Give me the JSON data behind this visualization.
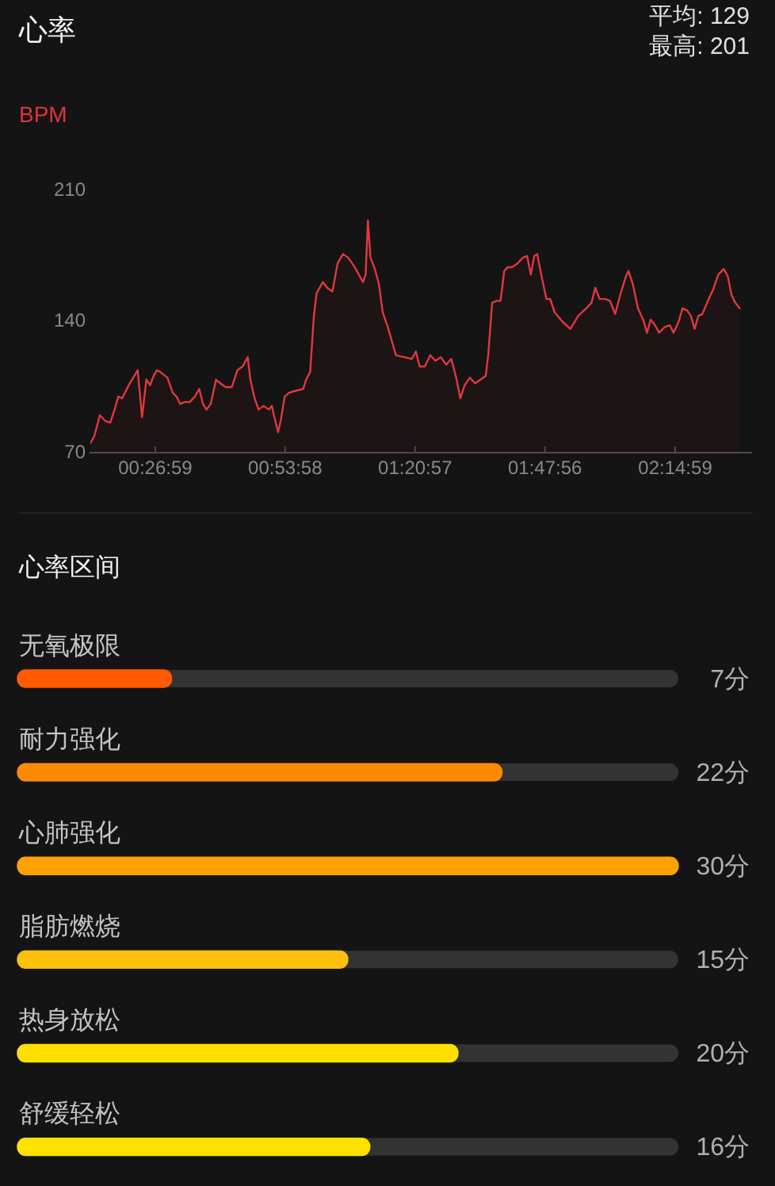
{
  "chart_data": [
    {
      "type": "area",
      "title": "心率",
      "ylabel": "BPM",
      "annotations": [
        "平均: 129",
        "最高: 201"
      ],
      "x": [
        0.225,
        0.239,
        0.258,
        0.276,
        0.294,
        0.309,
        0.322,
        0.335,
        0.358,
        0.377,
        0.389,
        0.404,
        0.419,
        0.432,
        0.444,
        0.455,
        0.468,
        0.492,
        0.51,
        0.523,
        0.536,
        0.551,
        0.569,
        0.587,
        0.602,
        0.615,
        0.627,
        0.642,
        0.66,
        0.675,
        0.693,
        0.715,
        0.734,
        0.752,
        0.77,
        0.779,
        0.792,
        0.807,
        0.825,
        0.843,
        0.853,
        0.862,
        0.875,
        0.884,
        0.898,
        0.913,
        0.935,
        0.962,
        0.972,
        0.986,
        0.999,
        1.008,
        1.03,
        1.045,
        1.063,
        1.081,
        1.1,
        1.118,
        1.14,
        1.169,
        1.178,
        1.186,
        1.195,
        1.21,
        1.224,
        1.237,
        1.255,
        1.283,
        1.31,
        1.338,
        1.352,
        1.365,
        1.383,
        1.402,
        1.42,
        1.438,
        1.457,
        1.475,
        1.493,
        1.506,
        1.521,
        1.539,
        1.557,
        1.576,
        1.594,
        1.603,
        1.616,
        1.631,
        1.645,
        1.658,
        1.671,
        1.685,
        1.704,
        1.722,
        1.737,
        1.75,
        1.762,
        1.772,
        1.786,
        1.804,
        1.817,
        1.832,
        1.859,
        1.887,
        1.914,
        1.942,
        1.96,
        1.973,
        1.988,
        2.006,
        2.024,
        2.042,
        2.061,
        2.079,
        2.088,
        2.103,
        2.121,
        2.139,
        2.152,
        2.165,
        2.18,
        2.194,
        2.213,
        2.231,
        2.244,
        2.262,
        2.275,
        2.29,
        2.304,
        2.317,
        2.33,
        2.344,
        2.363,
        2.381,
        2.399,
        2.418,
        2.432,
        2.445,
        2.458,
        2.473
      ],
      "series": [
        {
          "color": "#e0383e",
          "values": [
            75,
            79,
            90,
            87,
            86,
            93,
            100,
            99,
            106,
            111,
            114,
            89,
            109,
            106,
            111,
            114,
            113,
            110,
            102,
            100,
            96,
            97,
            97,
            100,
            104,
            96,
            93,
            96,
            109,
            107,
            105,
            105,
            114,
            116,
            121,
            109,
            100,
            93,
            95,
            93,
            95,
            89,
            81,
            87,
            100,
            102,
            103,
            104,
            109,
            113,
            143,
            155,
            161,
            158,
            156,
            171,
            176,
            174,
            169,
            161,
            165,
            194,
            174,
            168,
            160,
            145,
            137,
            122,
            121,
            120,
            124,
            116,
            116,
            122,
            119,
            121,
            117,
            120,
            109,
            99,
            106,
            110,
            107,
            109,
            111,
            123,
            150,
            151,
            151,
            167,
            169,
            169,
            171,
            174,
            175,
            165,
            175,
            176,
            165,
            152,
            152,
            145,
            140,
            136,
            143,
            147,
            150,
            158,
            152,
            152,
            151,
            144,
            155,
            164,
            167,
            160,
            147,
            141,
            134,
            141,
            138,
            134,
            137,
            138,
            134,
            140,
            147,
            146,
            143,
            136,
            143,
            144,
            151,
            157,
            165,
            168,
            164,
            154,
            150,
            147
          ]
        }
      ],
      "xlim": [
        0.225,
        2.513
      ],
      "xticks": [
        {
          "value": 0.4497,
          "label": "00:26:59"
        },
        {
          "value": 0.8994,
          "label": "00:53:58"
        },
        {
          "value": 1.3492,
          "label": "01:20:57"
        },
        {
          "value": 1.7989,
          "label": "01:47:56"
        },
        {
          "value": 2.2497,
          "label": "02:14:59"
        }
      ],
      "ylim": [
        70,
        210
      ],
      "yticks": [
        70,
        140,
        210
      ]
    },
    {
      "type": "bar",
      "title": "心率区间",
      "orientation": "horizontal",
      "categories": [
        "无氧极限",
        "耐力强化",
        "心肺强化",
        "脂肪燃烧",
        "热身放松",
        "舒缓轻松"
      ],
      "values": [
        7,
        22,
        30,
        15,
        20,
        16
      ],
      "colors": [
        "#ff5a00",
        "#ff8a00",
        "#ffa100",
        "#fbbf0c",
        "#ffdf00",
        "#ffe100"
      ],
      "value_labels": [
        "7分",
        "22分",
        "30分",
        "15分",
        "20分",
        "16分"
      ],
      "xlim": [
        0,
        30
      ],
      "tick_labels": "y"
    }
  ]
}
